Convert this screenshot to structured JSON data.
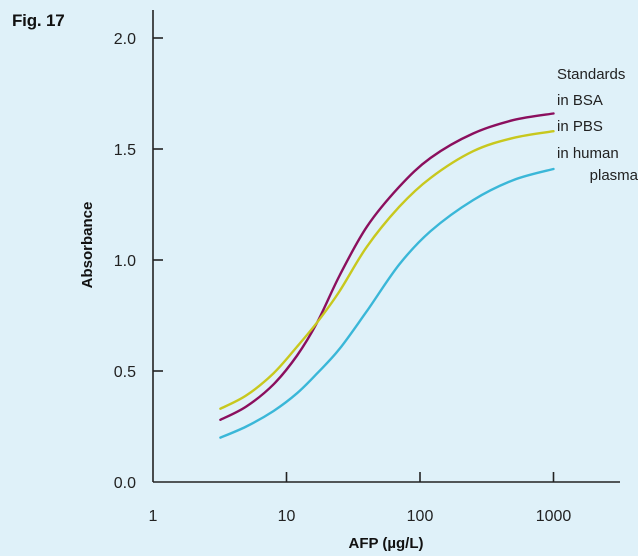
{
  "figure_label": "Fig. 17",
  "chart_data": {
    "type": "line",
    "xlabel": "AFP (µg/L)",
    "ylabel": "Absorbance",
    "x_scale": "log",
    "xlim": [
      1,
      4000
    ],
    "ylim": [
      0,
      2.1
    ],
    "x_ticks": [
      1,
      10,
      100,
      1000
    ],
    "x_tick_labels": [
      "1",
      "10",
      "100",
      "1000"
    ],
    "y_ticks": [
      0,
      0.5,
      1.0,
      1.5,
      2.0
    ],
    "y_tick_labels": [
      "0.0",
      "0.5",
      "1.0",
      "1.5",
      "2.0"
    ],
    "legend_title": "Standards",
    "series": [
      {
        "name": "in BSA",
        "color": "#8b0f5e",
        "x": [
          3.2,
          5,
          8,
          12,
          17,
          25,
          40,
          70,
          120,
          250,
          500,
          1000
        ],
        "y": [
          0.28,
          0.34,
          0.44,
          0.57,
          0.72,
          0.93,
          1.15,
          1.33,
          1.46,
          1.57,
          1.63,
          1.66
        ]
      },
      {
        "name": "in PBS",
        "color": "#c8c81e",
        "x": [
          3.2,
          5,
          8,
          12,
          17,
          25,
          40,
          70,
          120,
          250,
          500,
          1000
        ],
        "y": [
          0.33,
          0.39,
          0.49,
          0.61,
          0.72,
          0.86,
          1.06,
          1.24,
          1.37,
          1.49,
          1.55,
          1.58
        ]
      },
      {
        "name": "in human plasma",
        "color": "#3ab7d8",
        "x": [
          3.2,
          5,
          8,
          12,
          17,
          25,
          40,
          70,
          120,
          250,
          500,
          1000
        ],
        "y": [
          0.2,
          0.25,
          0.32,
          0.4,
          0.49,
          0.6,
          0.77,
          0.98,
          1.13,
          1.27,
          1.36,
          1.41
        ]
      }
    ],
    "legend_lines": [
      "Standards",
      "in BSA",
      "in PBS",
      "in human",
      "plasma"
    ]
  }
}
